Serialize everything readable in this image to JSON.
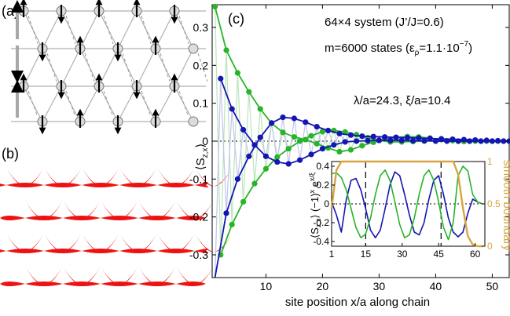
{
  "panels": {
    "a_label": "(a)",
    "b_label": "(b)",
    "c_label": "(c)"
  },
  "annotations": {
    "system_line": "64×4 system (J’/J=0.6)",
    "states_line_prefix": "m=6000 states (ε",
    "states_line_sub": "ρ",
    "states_line_mid": "=1.1·10",
    "states_line_sup": "−7",
    "states_line_end": ")",
    "lambda_xi": "λ/a=24.3,  ξ/a=10.4"
  },
  "colors": {
    "blue": "#1515b4",
    "green": "#28b428",
    "orange": "#d9a441",
    "lattice": "#b0b0b0",
    "red": "#ee1111"
  },
  "chart_data": [
    {
      "type": "line",
      "title": "",
      "xlabel": "site position x/a along chain",
      "ylabel_main": "⟨S",
      "ylabel_sub": "z,x",
      "ylabel_end": "⟩",
      "xlim": [
        0.5,
        53
      ],
      "ylim": [
        -0.36,
        0.36
      ],
      "xticks": [
        10,
        20,
        30,
        40,
        50
      ],
      "yticks": [
        -0.3,
        -0.2,
        -0.1,
        0,
        0.1,
        0.2,
        0.3
      ],
      "ytick_labels": [
        "-0.3",
        "-0.2",
        "-0.1",
        "0",
        "0.1",
        "0.2",
        "0.3"
      ],
      "series": [
        {
          "color": "green",
          "x": [
            1,
            3,
            5,
            7,
            9,
            11,
            13,
            15,
            17,
            19,
            21,
            23,
            25,
            27,
            29,
            31,
            33,
            35,
            37,
            39,
            41,
            43,
            45,
            47,
            49,
            51,
            53
          ],
          "values": [
            0.355,
            0.24,
            0.18,
            0.13,
            0.085,
            0.047,
            0.023,
            0.011,
            0.004,
            -0.007,
            -0.018,
            -0.028,
            -0.023,
            -0.012,
            -0.003,
            0.005,
            0.01,
            0.012,
            0.011,
            0.008,
            0.004,
            0.001,
            -0.001,
            0.0,
            0.0,
            0.0,
            0.0
          ]
        },
        {
          "color": "green",
          "x": [
            2,
            4,
            6,
            8,
            10,
            12,
            14,
            16,
            18,
            20,
            22,
            24,
            26,
            28,
            30,
            32,
            34,
            36,
            38,
            40,
            42,
            44,
            46,
            48,
            50,
            52
          ],
          "values": [
            -0.3,
            -0.22,
            -0.16,
            -0.112,
            -0.073,
            -0.042,
            -0.02,
            0.0,
            0.014,
            0.025,
            0.028,
            0.024,
            0.017,
            0.009,
            0.002,
            -0.002,
            -0.002,
            -0.001,
            0.0,
            0.001,
            0.001,
            0.0,
            0.0,
            0.0,
            0.0,
            0.0
          ]
        },
        {
          "color": "blue",
          "x": [
            1,
            3,
            5,
            7,
            9,
            11,
            13,
            15,
            17,
            19,
            21,
            23,
            25,
            27,
            29,
            31,
            33,
            35,
            37,
            39,
            41,
            43,
            45,
            47,
            49,
            51,
            53
          ],
          "values": [
            -0.43,
            -0.19,
            -0.1,
            -0.04,
            0.01,
            0.048,
            0.063,
            0.06,
            0.05,
            0.038,
            0.028,
            0.02,
            0.016,
            0.013,
            0.012,
            0.011,
            0.01,
            0.009,
            0.008,
            0.007,
            0.006,
            0.005,
            0.004,
            0.003,
            0.002,
            0.001,
            0.0
          ]
        },
        {
          "color": "blue",
          "x": [
            2,
            4,
            6,
            8,
            10,
            12,
            14,
            16,
            18,
            20,
            22,
            24,
            26,
            28,
            30,
            32,
            34,
            36,
            38,
            40,
            42,
            44,
            46,
            48,
            50,
            52
          ],
          "values": [
            0.165,
            0.085,
            0.03,
            -0.01,
            -0.04,
            -0.055,
            -0.06,
            -0.05,
            -0.035,
            -0.02,
            -0.01,
            -0.002,
            0.0,
            0.001,
            0.002,
            0.002,
            0.002,
            0.001,
            0.001,
            0.0,
            0.0,
            0.0,
            0.0,
            0.0,
            0.0,
            0.0
          ]
        }
      ]
    },
    {
      "type": "line",
      "title": "",
      "xlabel": "",
      "ylabel_left": "⟨S_z,x⟩ (−1)^x e^(x/ξ)",
      "ylabel_right": "smooth boundary",
      "xlim": [
        1,
        64
      ],
      "ylim_left": [
        -0.45,
        0.45
      ],
      "ylim_right": [
        0,
        1
      ],
      "xticks": [
        1,
        15,
        30,
        45,
        60
      ],
      "yticks_left": [
        -0.4,
        -0.2,
        0,
        0.2,
        0.4
      ],
      "yticks_left_labels": [
        "-0.4",
        "-0.2",
        "0",
        "0.2",
        "0.4"
      ],
      "yticks_right": [
        0,
        0.5,
        1
      ],
      "yticks_right_labels": [
        "0",
        "0.5",
        "1"
      ],
      "vlines": [
        15,
        46
      ],
      "series": [
        {
          "color": "blue",
          "x": [
            1,
            3,
            5,
            7,
            9,
            11,
            13,
            15,
            17,
            19,
            21,
            23,
            25,
            27,
            29,
            31,
            33,
            35,
            37,
            39,
            41,
            43,
            45,
            47,
            49,
            51,
            53,
            55,
            57,
            59,
            61,
            63
          ],
          "values": [
            0.02,
            -0.12,
            -0.3,
            0.04,
            0.25,
            0.27,
            0.15,
            -0.05,
            -0.28,
            -0.36,
            -0.28,
            -0.05,
            0.2,
            0.34,
            0.3,
            0.1,
            -0.12,
            -0.3,
            -0.33,
            -0.2,
            0.05,
            0.25,
            0.3,
            0.1,
            -0.15,
            -0.3,
            -0.35,
            -0.3,
            -0.1,
            0.05,
            0.02,
            0.0
          ]
        },
        {
          "color": "green",
          "x": [
            1,
            3,
            5,
            7,
            9,
            11,
            13,
            15,
            17,
            19,
            21,
            23,
            25,
            27,
            29,
            31,
            33,
            35,
            37,
            39,
            41,
            43,
            45,
            47,
            49,
            51,
            53,
            55,
            57,
            59,
            61,
            63
          ],
          "values": [
            0.32,
            0.33,
            0.28,
            0.15,
            -0.05,
            -0.25,
            -0.36,
            -0.32,
            -0.15,
            0.1,
            0.3,
            0.36,
            0.25,
            0.02,
            -0.22,
            -0.36,
            -0.33,
            -0.15,
            0.1,
            0.3,
            0.36,
            0.25,
            0.02,
            -0.25,
            -0.38,
            -0.2,
            0.3,
            0.4,
            0.35,
            0.1,
            0.02,
            0.0
          ]
        },
        {
          "color": "orange",
          "axis": "right",
          "x": [
            1,
            3,
            5,
            7,
            9,
            11,
            13,
            15,
            17,
            19,
            21,
            23,
            25,
            27,
            29,
            31,
            33,
            35,
            37,
            39,
            41,
            43,
            45,
            47,
            49,
            51,
            53,
            55,
            57,
            59,
            61,
            63
          ],
          "values": [
            0.45,
            0.9,
            1,
            1,
            1,
            1,
            1,
            1,
            1,
            1,
            1,
            1,
            1,
            1,
            1,
            1,
            1,
            1,
            1,
            1,
            1,
            1,
            1,
            1,
            1,
            1,
            0.85,
            0.45,
            0.12,
            0.02,
            0,
            0
          ]
        }
      ]
    }
  ]
}
